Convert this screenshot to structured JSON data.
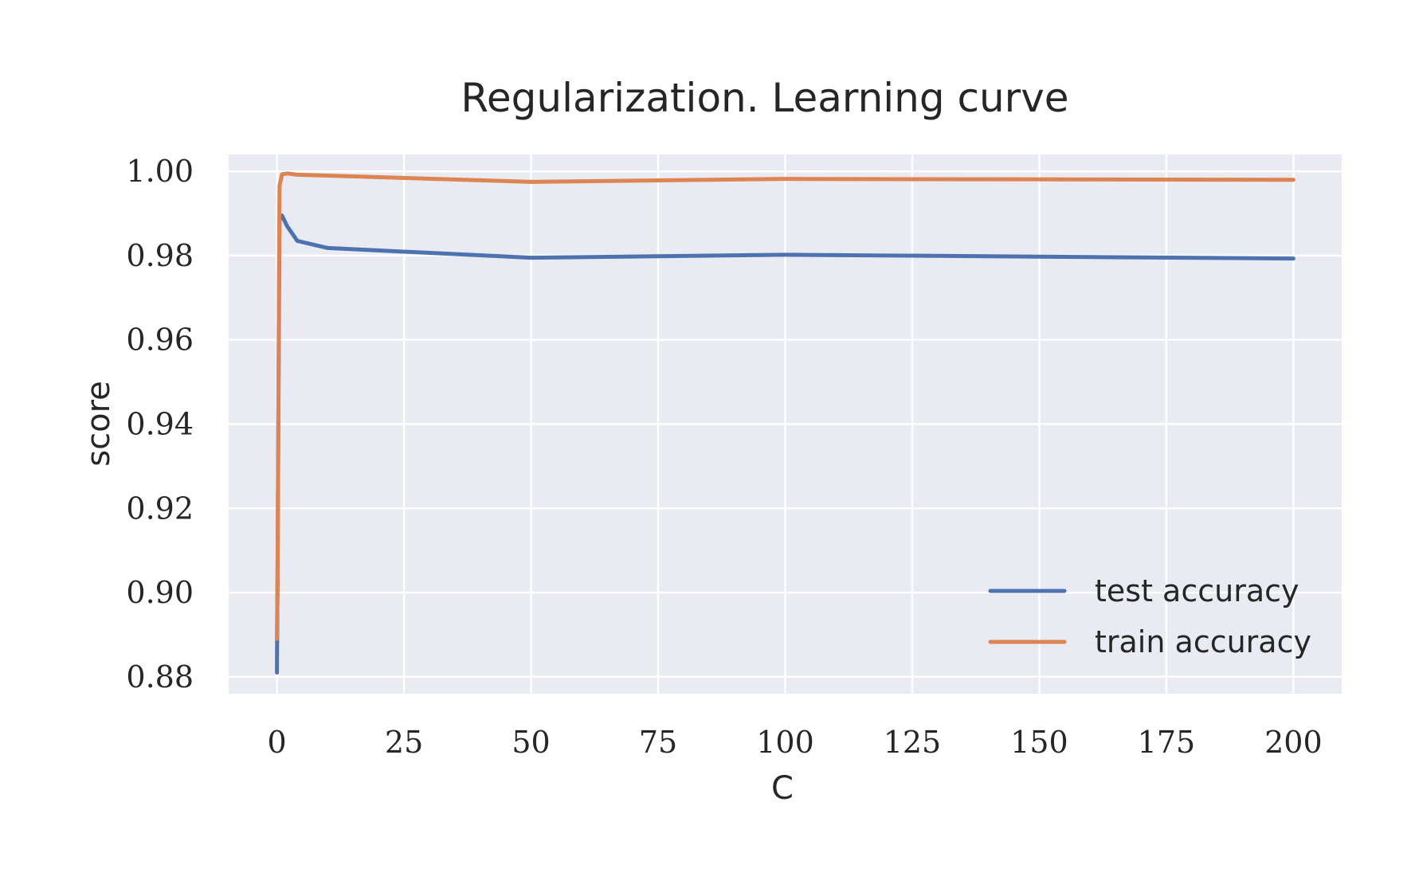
{
  "chart_data": {
    "type": "line",
    "title": "Regularization. Learning curve",
    "xlabel": "C",
    "ylabel": "score",
    "xlim": [
      -9.5,
      209.5
    ],
    "ylim": [
      0.876,
      1.004
    ],
    "xticks": [
      0,
      25,
      50,
      75,
      100,
      125,
      150,
      175,
      200
    ],
    "xtick_labels": [
      "0",
      "25",
      "50",
      "75",
      "100",
      "125",
      "150",
      "175",
      "200"
    ],
    "yticks": [
      0.88,
      0.9,
      0.92,
      0.94,
      0.96,
      0.98,
      1.0
    ],
    "ytick_labels": [
      "0.88",
      "0.90",
      "0.92",
      "0.94",
      "0.96",
      "0.98",
      "1.00"
    ],
    "grid": true,
    "legend_position": "lower-right",
    "x": [
      0.001,
      0.01,
      0.1,
      0.5,
      1,
      2,
      4,
      10,
      50,
      100,
      200
    ],
    "series": [
      {
        "name": "test accuracy",
        "color": "#4c72b0",
        "values": [
          0.881,
          0.884,
          0.9,
          0.9885,
          0.9895,
          0.987,
          0.9835,
          0.9818,
          0.9795,
          0.9802,
          0.9793
        ]
      },
      {
        "name": "train accuracy",
        "color": "#dd8452",
        "values": [
          0.889,
          0.892,
          0.9,
          0.9965,
          0.9993,
          0.9995,
          0.9992,
          0.999,
          0.9975,
          0.9982,
          0.998
        ]
      }
    ],
    "colors": {
      "plot_background": "#eaeaf2",
      "grid": "#ffffff",
      "text": "#262626"
    }
  }
}
